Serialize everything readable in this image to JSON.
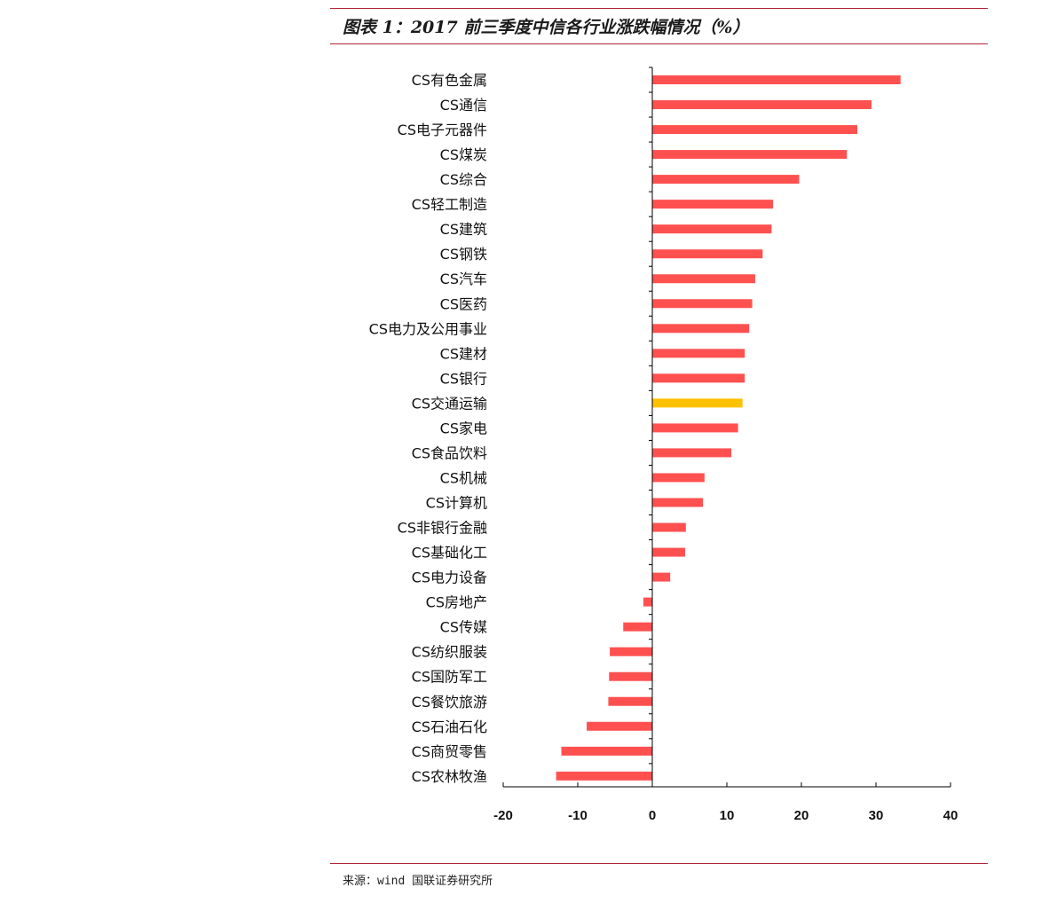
{
  "header": {
    "title": "图表 1：2017 前三季度中信各行业涨跌幅情况（%）"
  },
  "footer": {
    "source": "来源：wind 国联证券研究所"
  },
  "colors": {
    "bar": "#ff5050",
    "highlight": "#ffc000",
    "rule": "#b0243a",
    "axis": "#000000"
  },
  "chart_data": {
    "type": "bar",
    "orientation": "horizontal",
    "categories": [
      "CS有色金属",
      "CS通信",
      "CS电子元器件",
      "CS煤炭",
      "CS综合",
      "CS轻工制造",
      "CS建筑",
      "CS钢铁",
      "CS汽车",
      "CS医药",
      "CS电力及公用事业",
      "CS建材",
      "CS银行",
      "CS交通运输",
      "CS家电",
      "CS食品饮料",
      "CS机械",
      "CS计算机",
      "CS非银行金融",
      "CS基础化工",
      "CS电力设备",
      "CS房地产",
      "CS传媒",
      "CS纺织服装",
      "CS国防军工",
      "CS餐饮旅游",
      "CS石油石化",
      "CS商贸零售",
      "CS农林牧渔"
    ],
    "values": [
      33.3,
      29.4,
      27.5,
      26.1,
      19.7,
      16.2,
      16.0,
      14.8,
      13.8,
      13.4,
      13.0,
      12.4,
      12.4,
      12.1,
      11.5,
      10.6,
      7.0,
      6.8,
      4.5,
      4.4,
      2.4,
      -1.2,
      -3.9,
      -5.7,
      -5.8,
      -5.9,
      -8.8,
      -12.2,
      -12.9
    ],
    "highlight_category": "CS交通运输",
    "xlim": [
      -20,
      40
    ],
    "xticks": [
      -20,
      -10,
      0,
      10,
      20,
      30,
      40
    ],
    "title": "",
    "xlabel": "",
    "ylabel": "",
    "grid": false,
    "legend": "none"
  }
}
